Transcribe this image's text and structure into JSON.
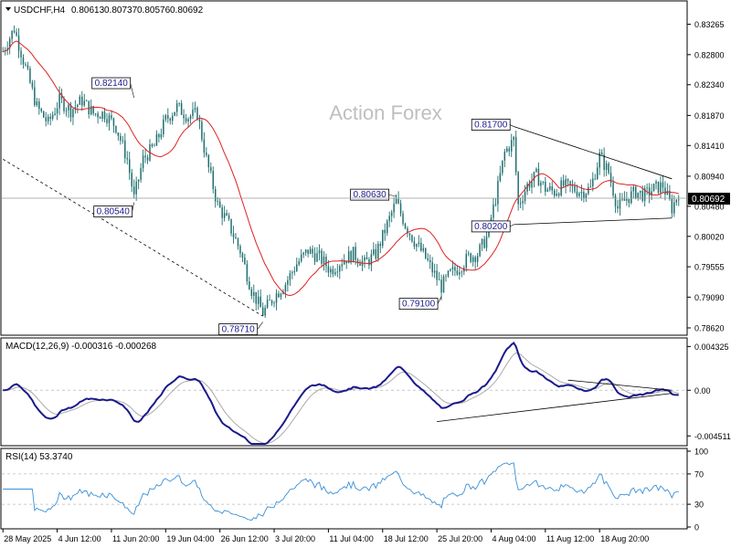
{
  "chart_data": {
    "type": "candlestick",
    "symbol_header": {
      "symbol": "USDCHF,H4",
      "open": "0.80613",
      "high": "0.80737",
      "low": "0.80576",
      "close": "0.80692"
    },
    "watermark": "Action Forex",
    "current_price_label": "0.80692",
    "colors": {
      "candle": "#1f6e6e",
      "ma": "#e02020",
      "macd": "#1a1a8c",
      "signal": "#aaaaaa",
      "rsi": "#3a8fd6",
      "trendline": "#000000",
      "grid": "#cccccc"
    },
    "price_panel": {
      "ylim": [
        0.7855,
        0.8358
      ],
      "yticks": [
        "0.83265",
        "0.82800",
        "0.82340",
        "0.81870",
        "0.81410",
        "0.80940",
        "0.80480",
        "0.80020",
        "0.79555",
        "0.79090",
        "0.78620"
      ],
      "annotations": [
        {
          "label": "0.82140",
          "price": 0.8214,
          "bar": 58
        },
        {
          "label": "0.80540",
          "price": 0.8054,
          "bar": 58
        },
        {
          "label": "0.78710",
          "price": 0.7871,
          "bar": 115
        },
        {
          "label": "0.80630",
          "price": 0.8063,
          "bar": 174
        },
        {
          "label": "0.79100",
          "price": 0.791,
          "bar": 194
        },
        {
          "label": "0.81700",
          "price": 0.817,
          "bar": 226
        },
        {
          "label": "0.80200",
          "price": 0.802,
          "bar": 226
        }
      ],
      "price_path": [
        {
          "bar": 0,
          "price": 0.8285
        },
        {
          "bar": 5,
          "price": 0.832
        },
        {
          "bar": 10,
          "price": 0.826
        },
        {
          "bar": 15,
          "price": 0.82
        },
        {
          "bar": 20,
          "price": 0.8175
        },
        {
          "bar": 25,
          "price": 0.821
        },
        {
          "bar": 30,
          "price": 0.8195
        },
        {
          "bar": 35,
          "price": 0.821
        },
        {
          "bar": 40,
          "price": 0.819
        },
        {
          "bar": 45,
          "price": 0.819
        },
        {
          "bar": 50,
          "price": 0.817
        },
        {
          "bar": 55,
          "price": 0.812
        },
        {
          "bar": 58,
          "price": 0.806
        },
        {
          "bar": 62,
          "price": 0.812
        },
        {
          "bar": 67,
          "price": 0.814
        },
        {
          "bar": 72,
          "price": 0.818
        },
        {
          "bar": 77,
          "price": 0.82
        },
        {
          "bar": 82,
          "price": 0.8185
        },
        {
          "bar": 86,
          "price": 0.819
        },
        {
          "bar": 90,
          "price": 0.812
        },
        {
          "bar": 95,
          "price": 0.805
        },
        {
          "bar": 100,
          "price": 0.802
        },
        {
          "bar": 105,
          "price": 0.798
        },
        {
          "bar": 110,
          "price": 0.792
        },
        {
          "bar": 115,
          "price": 0.7885
        },
        {
          "bar": 120,
          "price": 0.791
        },
        {
          "bar": 125,
          "price": 0.793
        },
        {
          "bar": 130,
          "price": 0.796
        },
        {
          "bar": 135,
          "price": 0.798
        },
        {
          "bar": 140,
          "price": 0.797
        },
        {
          "bar": 145,
          "price": 0.795
        },
        {
          "bar": 150,
          "price": 0.7965
        },
        {
          "bar": 155,
          "price": 0.7975
        },
        {
          "bar": 160,
          "price": 0.796
        },
        {
          "bar": 165,
          "price": 0.7975
        },
        {
          "bar": 170,
          "price": 0.802
        },
        {
          "bar": 174,
          "price": 0.8055
        },
        {
          "bar": 178,
          "price": 0.802
        },
        {
          "bar": 182,
          "price": 0.7995
        },
        {
          "bar": 186,
          "price": 0.7975
        },
        {
          "bar": 190,
          "price": 0.795
        },
        {
          "bar": 194,
          "price": 0.7925
        },
        {
          "bar": 198,
          "price": 0.7945
        },
        {
          "bar": 202,
          "price": 0.7955
        },
        {
          "bar": 206,
          "price": 0.797
        },
        {
          "bar": 210,
          "price": 0.7975
        },
        {
          "bar": 214,
          "price": 0.8
        },
        {
          "bar": 218,
          "price": 0.806
        },
        {
          "bar": 222,
          "price": 0.813
        },
        {
          "bar": 226,
          "price": 0.815
        },
        {
          "bar": 228,
          "price": 0.805
        },
        {
          "bar": 232,
          "price": 0.808
        },
        {
          "bar": 236,
          "price": 0.8095
        },
        {
          "bar": 240,
          "price": 0.8075
        },
        {
          "bar": 244,
          "price": 0.807
        },
        {
          "bar": 248,
          "price": 0.808
        },
        {
          "bar": 252,
          "price": 0.8075
        },
        {
          "bar": 256,
          "price": 0.807
        },
        {
          "bar": 260,
          "price": 0.8075
        },
        {
          "bar": 264,
          "price": 0.8125
        },
        {
          "bar": 268,
          "price": 0.81
        },
        {
          "bar": 272,
          "price": 0.8045
        },
        {
          "bar": 276,
          "price": 0.806
        },
        {
          "bar": 280,
          "price": 0.807
        },
        {
          "bar": 284,
          "price": 0.8065
        },
        {
          "bar": 288,
          "price": 0.8075
        },
        {
          "bar": 292,
          "price": 0.808
        },
        {
          "bar": 296,
          "price": 0.8045
        },
        {
          "bar": 299,
          "price": 0.8069
        }
      ]
    },
    "macd_panel": {
      "label": "MACD(12,26,9) -0.000316 -0.000268",
      "ylim": [
        -0.0053,
        0.0049
      ],
      "yticks": [
        "0.004325",
        "0.00",
        "-0.004511"
      ]
    },
    "rsi_panel": {
      "label": "RSI(14) 53.3740",
      "ylim": [
        0,
        100
      ],
      "yticks": [
        "100",
        "70",
        "30",
        "0"
      ],
      "levels": [
        70,
        30
      ]
    },
    "x_ticks": [
      {
        "label": "28 May 2025",
        "bar": 0
      },
      {
        "label": "4 Jun 12:00",
        "bar": 24
      },
      {
        "label": "11 Jun 20:00",
        "bar": 48
      },
      {
        "label": "19 Jun 04:00",
        "bar": 72
      },
      {
        "label": "26 Jun 12:00",
        "bar": 96
      },
      {
        "label": "3 Jul 20:00",
        "bar": 120
      },
      {
        "label": "11 Jul 04:00",
        "bar": 144
      },
      {
        "label": "18 Jul 12:00",
        "bar": 168
      },
      {
        "label": "25 Jul 20:00",
        "bar": 192
      },
      {
        "label": "4 Aug 04:00",
        "bar": 216
      },
      {
        "label": "11 Aug 12:00",
        "bar": 240
      },
      {
        "label": "18 Aug 20:00",
        "bar": 264
      }
    ]
  }
}
